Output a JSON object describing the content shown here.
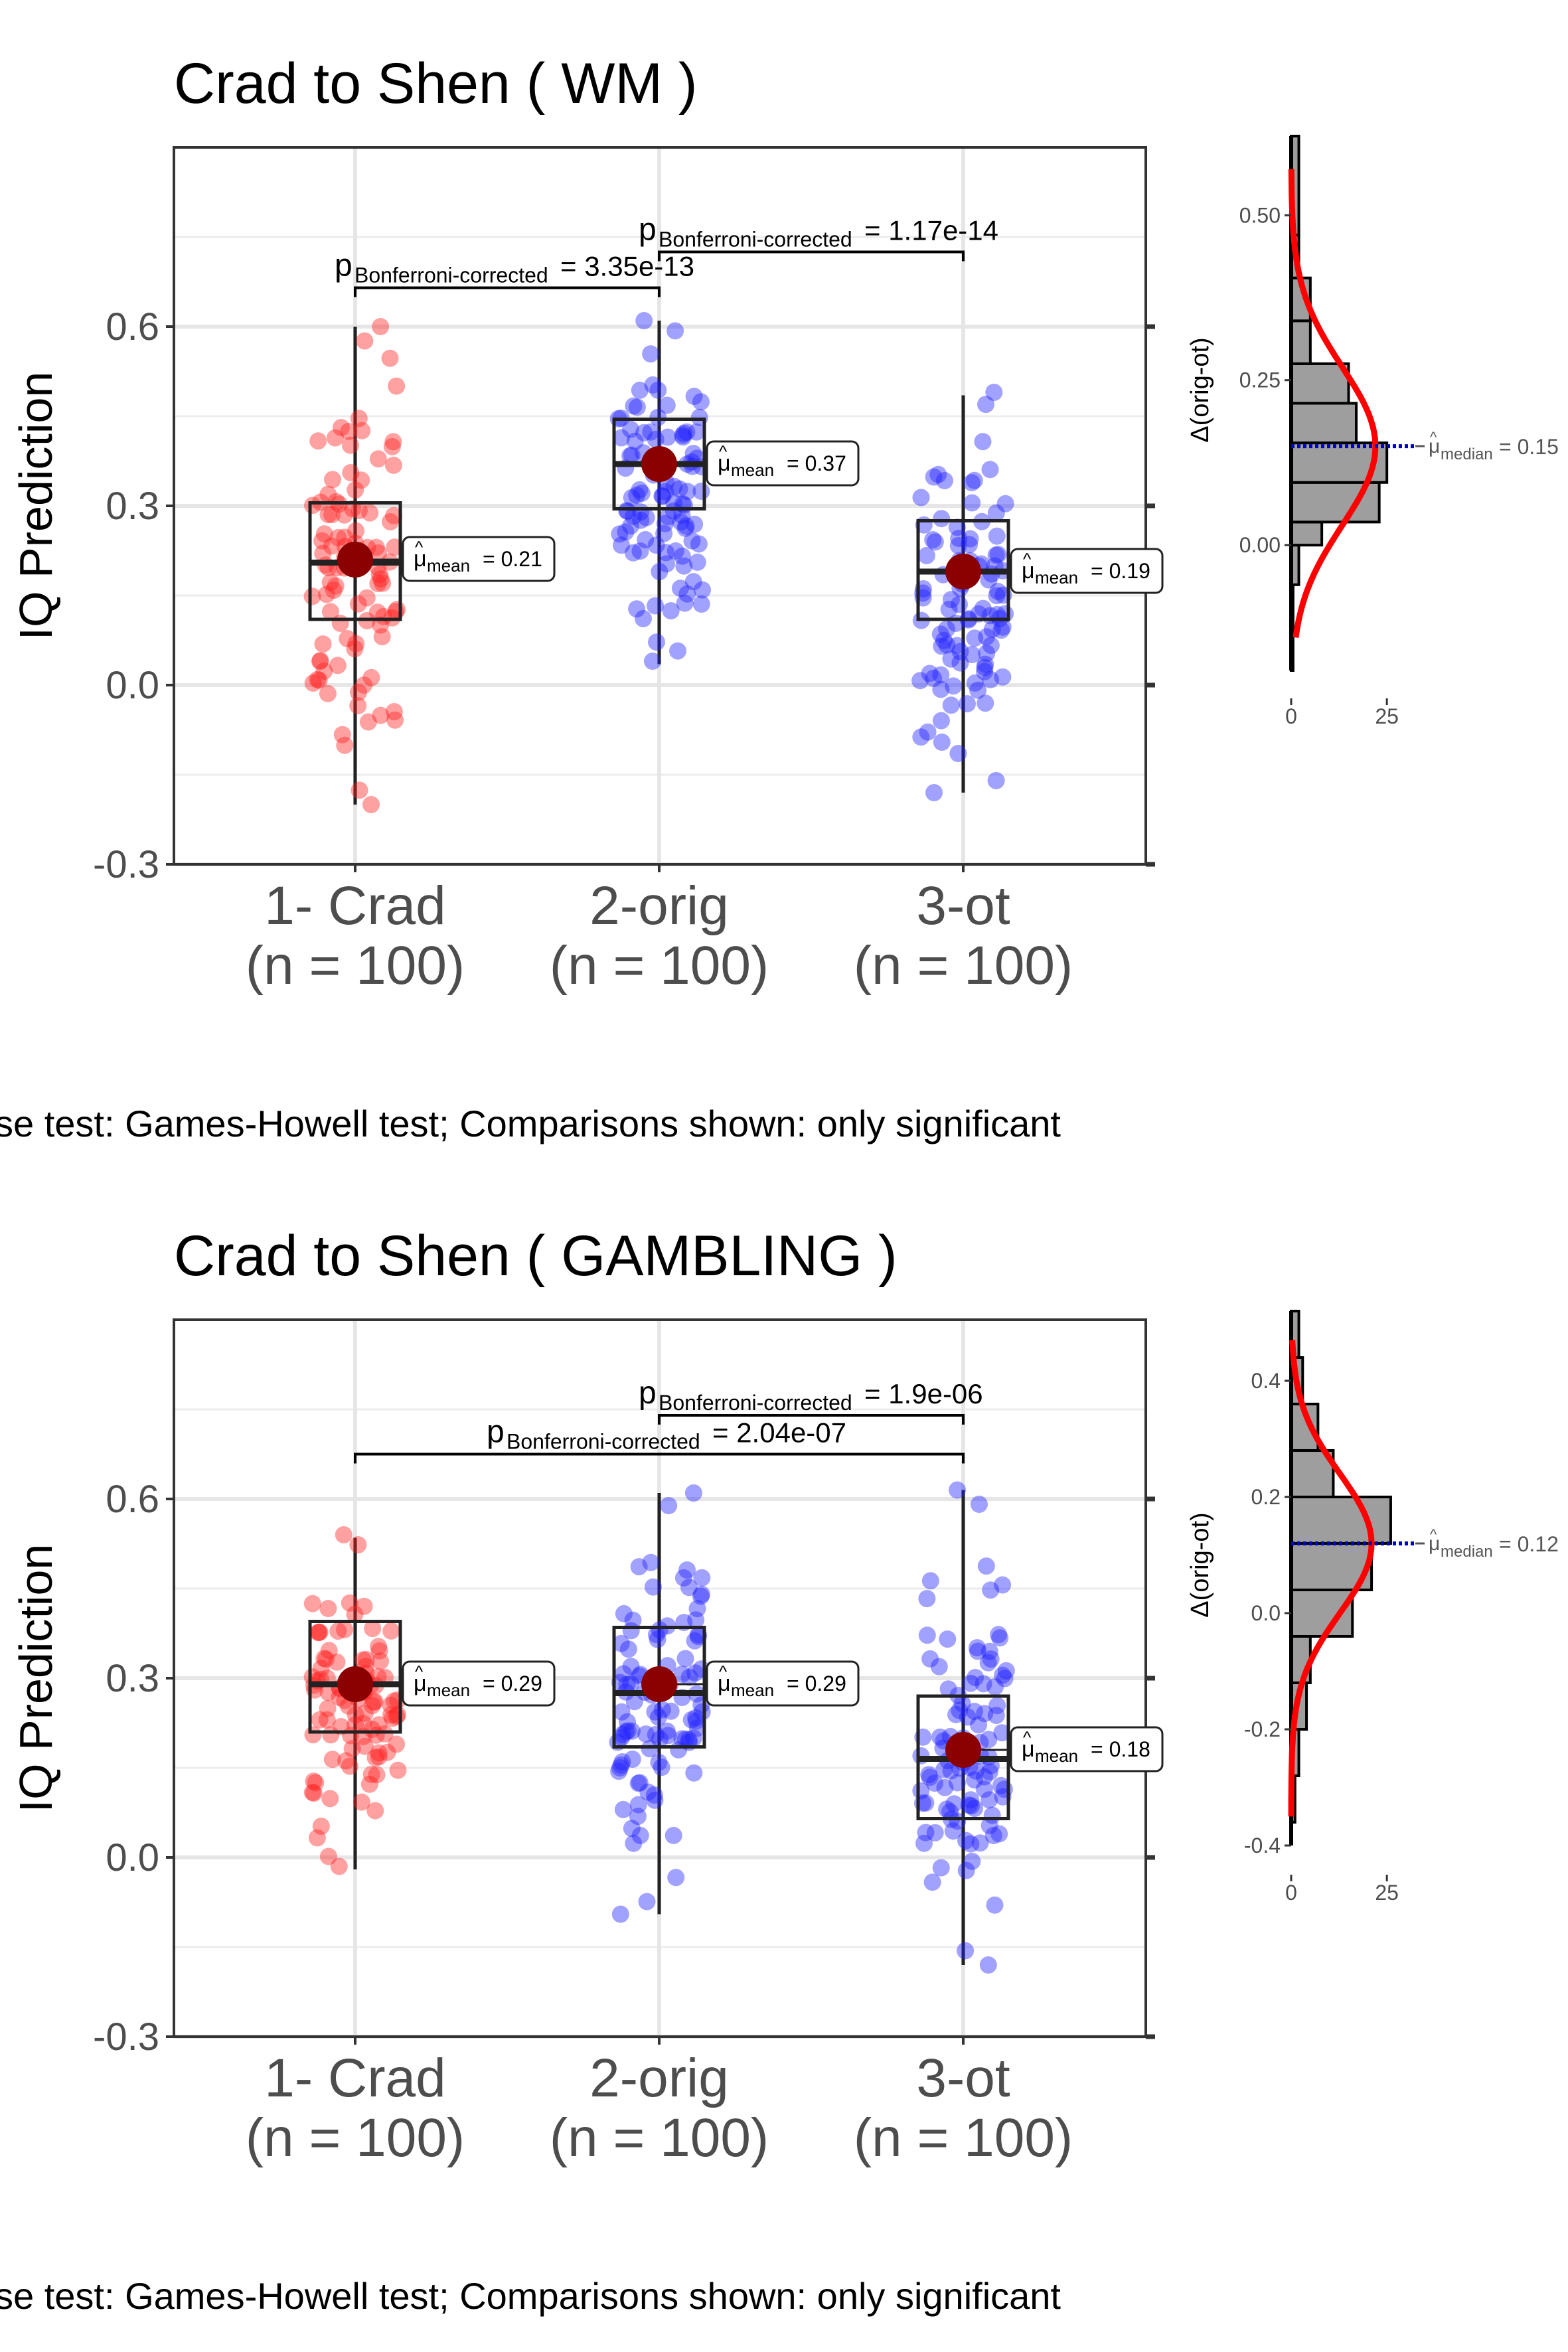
{
  "chart_data": [
    {
      "type": "box",
      "title": "Crad to Shen ( WM )",
      "ylabel": "IQ Prediction",
      "ylim": [
        -0.3,
        0.9
      ],
      "yticks": [
        "-0.3",
        "0.0",
        "0.3",
        "0.6"
      ],
      "categories": [
        {
          "name": "1- Crad",
          "n": "(n = 100)",
          "color": "#ff2020",
          "median": 0.205,
          "q1": 0.11,
          "q3": 0.305,
          "lo": -0.2,
          "hi": 0.6,
          "mean": 0.21,
          "mean_label": "= 0.21",
          "jmin": -0.2,
          "jmax": 0.6
        },
        {
          "name": "2-orig",
          "n": "(n = 100)",
          "color": "#2020ff",
          "median": 0.37,
          "q1": 0.295,
          "q3": 0.445,
          "lo": 0.035,
          "hi": 0.61,
          "mean": 0.37,
          "mean_label": "= 0.37",
          "jmin": 0.04,
          "jmax": 0.61
        },
        {
          "name": "3-ot",
          "n": "(n = 100)",
          "color": "#2020ff",
          "median": 0.19,
          "q1": 0.11,
          "q3": 0.275,
          "lo": -0.18,
          "hi": 0.485,
          "mean": 0.19,
          "mean_label": "= 0.19",
          "jmin": -0.18,
          "jmax": 0.49
        }
      ],
      "comparisons": [
        {
          "from": 0,
          "to": 1,
          "y": 0.665,
          "label": "= 3.35e-13"
        },
        {
          "from": 1,
          "to": 2,
          "y": 0.725,
          "label": "= 1.17e-14"
        }
      ],
      "caption": "se test: Games-Howell test; Comparisons shown: only significant",
      "p_label_main": "p",
      "p_label_sub": "Bonferroni-corrected",
      "mu_main": "μ",
      "mu_sub": "mean",
      "hist": {
        "ylabel": "Δ(orig-ot)",
        "ylim": [
          -0.19,
          0.62
        ],
        "yticks": [
          {
            "v": 0.5,
            "t": "0.50"
          },
          {
            "v": 0.25,
            "t": "0.25"
          },
          {
            "v": 0.0,
            "t": "0.00"
          }
        ],
        "xticks": [
          "0",
          "25"
        ],
        "xmax": 30,
        "bins": [
          {
            "lo": -0.19,
            "hi": -0.125,
            "c": 0.5
          },
          {
            "lo": -0.125,
            "hi": -0.06,
            "c": 0.5
          },
          {
            "lo": -0.06,
            "hi": -0.0,
            "c": 2
          },
          {
            "lo": -0.0,
            "hi": 0.035,
            "c": 8
          },
          {
            "lo": 0.035,
            "hi": 0.095,
            "c": 23
          },
          {
            "lo": 0.095,
            "hi": 0.155,
            "c": 25
          },
          {
            "lo": 0.155,
            "hi": 0.215,
            "c": 17
          },
          {
            "lo": 0.215,
            "hi": 0.275,
            "c": 15
          },
          {
            "lo": 0.275,
            "hi": 0.34,
            "c": 5
          },
          {
            "lo": 0.34,
            "hi": 0.405,
            "c": 5
          },
          {
            "lo": 0.405,
            "hi": 0.47,
            "c": 2
          },
          {
            "lo": 0.47,
            "hi": 0.62,
            "c": 2
          }
        ],
        "mean": 0.15,
        "sd": 0.12,
        "peak": 22,
        "median": 0.15,
        "median_label": "= 0.15",
        "mu_sub": "median"
      }
    },
    {
      "type": "box",
      "title": "Crad to Shen ( GAMBLING )",
      "ylabel": "IQ Prediction",
      "ylim": [
        -0.3,
        0.9
      ],
      "yticks": [
        "-0.3",
        "0.0",
        "0.3",
        "0.6"
      ],
      "categories": [
        {
          "name": "1- Crad",
          "n": "(n = 100)",
          "color": "#ff2020",
          "median": 0.29,
          "q1": 0.21,
          "q3": 0.395,
          "lo": -0.02,
          "hi": 0.535,
          "mean": 0.29,
          "mean_label": "= 0.29",
          "jmin": -0.015,
          "jmax": 0.54
        },
        {
          "name": "2-orig",
          "n": "(n = 100)",
          "color": "#2020ff",
          "median": 0.275,
          "q1": 0.185,
          "q3": 0.385,
          "lo": -0.095,
          "hi": 0.61,
          "mean": 0.29,
          "mean_label": "= 0.29",
          "jmin": -0.095,
          "jmax": 0.61
        },
        {
          "name": "3-ot",
          "n": "(n = 100)",
          "color": "#2020ff",
          "median": 0.165,
          "q1": 0.065,
          "q3": 0.27,
          "lo": -0.18,
          "hi": 0.615,
          "mean": 0.18,
          "mean_label": "= 0.18",
          "jmin": -0.18,
          "jmax": 0.615
        }
      ],
      "comparisons": [
        {
          "from": 0,
          "to": 2,
          "y": 0.675,
          "label": "= 2.04e-07"
        },
        {
          "from": 1,
          "to": 2,
          "y": 0.74,
          "label": "= 1.9e-06"
        }
      ],
      "caption": "se test: Games-Howell test; Comparisons shown: only significant",
      "p_label_main": "p",
      "p_label_sub": "Bonferroni-corrected",
      "mu_main": "μ",
      "mu_sub": "mean",
      "hist": {
        "ylabel": "Δ(orig-ot)",
        "ylim": [
          -0.4,
          0.52
        ],
        "yticks": [
          {
            "v": 0.4,
            "t": "0.4"
          },
          {
            "v": 0.2,
            "t": "0.2"
          },
          {
            "v": 0.0,
            "t": "0.0"
          },
          {
            "v": -0.2,
            "t": "-0.2"
          },
          {
            "v": -0.4,
            "t": "-0.4"
          }
        ],
        "xticks": [
          "0",
          "25"
        ],
        "xmax": 30,
        "bins": [
          {
            "lo": -0.36,
            "hi": -0.28,
            "c": 1
          },
          {
            "lo": -0.28,
            "hi": -0.2,
            "c": 2
          },
          {
            "lo": -0.2,
            "hi": -0.12,
            "c": 4
          },
          {
            "lo": -0.12,
            "hi": -0.04,
            "c": 5
          },
          {
            "lo": -0.04,
            "hi": 0.04,
            "c": 16
          },
          {
            "lo": 0.04,
            "hi": 0.12,
            "c": 21
          },
          {
            "lo": 0.12,
            "hi": 0.2,
            "c": 26
          },
          {
            "lo": 0.2,
            "hi": 0.28,
            "c": 11
          },
          {
            "lo": 0.28,
            "hi": 0.36,
            "c": 7
          },
          {
            "lo": 0.36,
            "hi": 0.44,
            "c": 3
          },
          {
            "lo": 0.44,
            "hi": 0.52,
            "c": 2
          }
        ],
        "mean": 0.12,
        "sd": 0.12,
        "peak": 21,
        "median": 0.12,
        "median_label": "= 0.12",
        "mu_sub": "median"
      }
    }
  ]
}
